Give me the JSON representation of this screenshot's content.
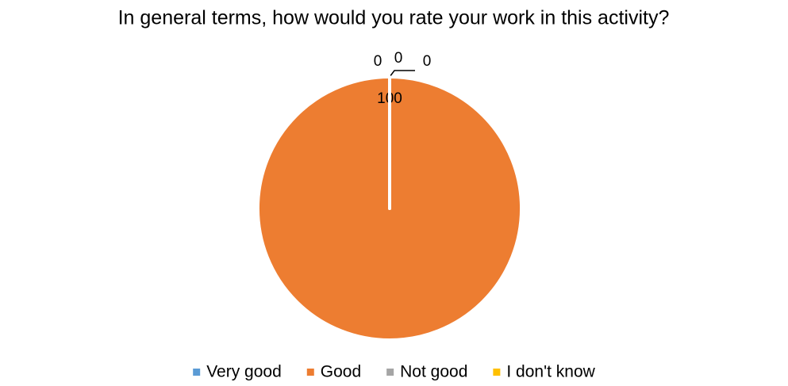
{
  "chart_data": {
    "type": "pie",
    "title": "In general terms, how would you rate your work in this activity?",
    "categories": [
      "Very good",
      "Good",
      "Not good",
      "I don't know"
    ],
    "values": [
      0,
      100,
      0,
      0
    ],
    "colors": [
      "#5b9bd5",
      "#ed7d31",
      "#a5a5a5",
      "#ffc000"
    ],
    "legend": "bottom"
  }
}
